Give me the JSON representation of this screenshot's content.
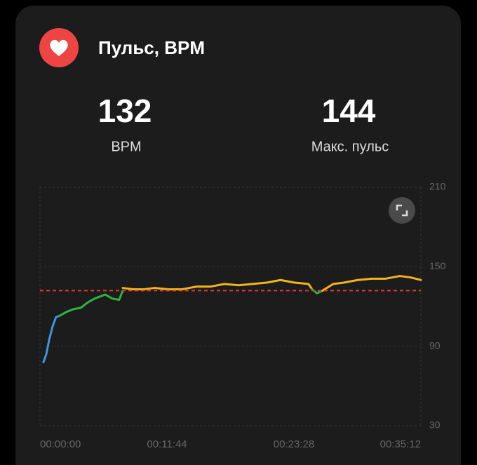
{
  "header": {
    "title": "Пульс, BPM"
  },
  "stats": [
    {
      "value": 132,
      "label": "BPM"
    },
    {
      "value": 144,
      "label": "Макс. пульс"
    }
  ],
  "chart_data": {
    "type": "line",
    "xlim": [
      0,
      2112
    ],
    "xticks": [
      {
        "value": 0,
        "label": "00:00:00"
      },
      {
        "value": 704,
        "label": "00:11:44"
      },
      {
        "value": 1408,
        "label": "00:23:28"
      },
      {
        "value": 2112,
        "label": "00:35:12"
      }
    ],
    "ylim": [
      30,
      210
    ],
    "yticks": [
      30,
      90,
      150,
      210
    ],
    "grid": true,
    "reference_line": 132,
    "reference_color": "#e53935",
    "series": [
      {
        "color": "#3b97e3",
        "x": [
          19,
          35,
          51,
          70,
          89,
          109
        ],
        "values": [
          78,
          84,
          95,
          105,
          112,
          113
        ]
      },
      {
        "color": "#2fb344",
        "x": [
          109,
          148,
          187,
          226,
          264,
          303,
          362,
          401,
          439,
          459
        ],
        "values": [
          113,
          116,
          118,
          119,
          123,
          126,
          129,
          126,
          125,
          132
        ]
      },
      {
        "color": "#f0b41c",
        "x": [
          459,
          517,
          576,
          634,
          712,
          789,
          867,
          945,
          1023,
          1101,
          1178,
          1256,
          1334,
          1412,
          1489,
          1509
        ],
        "values": [
          134,
          133,
          133,
          134,
          133,
          133,
          135,
          135,
          137,
          136,
          137,
          138,
          140,
          138,
          137,
          133
        ]
      },
      {
        "color": "#2fb344",
        "x": [
          1509,
          1536,
          1567
        ],
        "values": [
          133,
          130,
          132
        ]
      },
      {
        "color": "#f0b41c",
        "x": [
          1567,
          1626,
          1684,
          1762,
          1839,
          1917,
          1995,
          2053,
          2112
        ],
        "values": [
          132,
          137,
          138,
          140,
          141,
          141,
          143,
          142,
          140
        ]
      }
    ]
  }
}
